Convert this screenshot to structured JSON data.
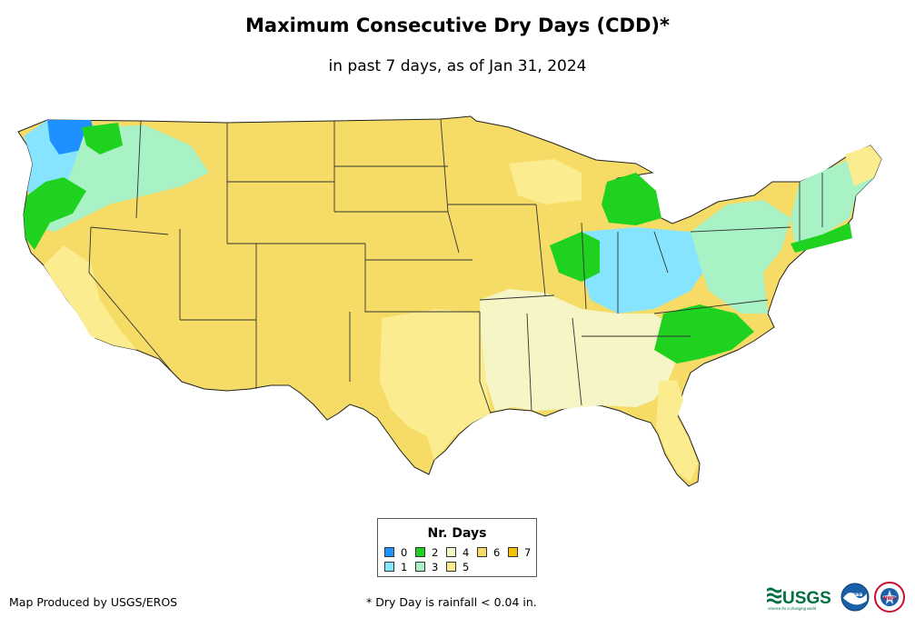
{
  "title": "Maximum Consecutive Dry Days (CDD)*",
  "subtitle": "in past 7 days, as of Jan 31, 2024",
  "legend": {
    "title": "Nr. Days",
    "items": [
      {
        "label": "0",
        "color": "#1e90ff"
      },
      {
        "label": "1",
        "color": "#87e4ff"
      },
      {
        "label": "2",
        "color": "#1fd21f"
      },
      {
        "label": "3",
        "color": "#a9f2c6"
      },
      {
        "label": "4",
        "color": "#f6f5c6"
      },
      {
        "label": "5",
        "color": "#faec8f"
      },
      {
        "label": "6",
        "color": "#f6dc66"
      },
      {
        "label": "7",
        "color": "#f2c200"
      }
    ]
  },
  "footer": {
    "producer": "Map Produced by USGS/EROS",
    "footnote": "* Dry Day is rainfall < 0.04 in."
  },
  "logos": {
    "usgs": "USGS",
    "usgs_tagline": "science for a changing world",
    "noaa": "noaa",
    "nws": "NWS"
  }
}
